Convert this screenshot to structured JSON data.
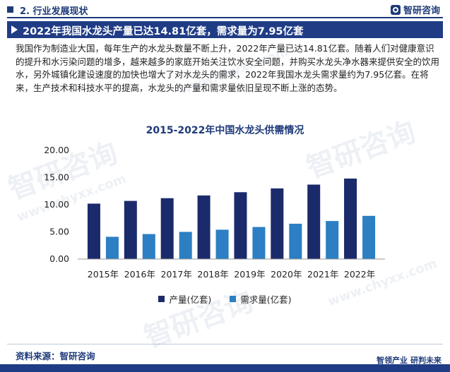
{
  "header": {
    "section": "2. 行业发展现状",
    "brand": "智研咨询"
  },
  "banner": {
    "title": "2022年我国水龙头产量已达14.81亿套，需求量为7.95亿套"
  },
  "paragraph": "我国作为制造业大国，每年生产的水龙头数量不断上升，2022年产量已达14.81亿套。随着人们对健康意识的提升和水污染问题的增多，越来越多的家庭开始关注饮水安全问题，并购买水龙头净水器来提供安全的饮用水，另外城镇化建设速度的加快也增大了对水龙头的需求，2022年我国水龙头需求量约为7.95亿套。在将来，生产技术和科技水平的提高，水龙头的产量和需求量依旧呈现不断上涨的态势。",
  "watermark": {
    "cn": "智研咨询",
    "url": "www.chyxx.com"
  },
  "chart_data": {
    "type": "bar",
    "title": "2015-2022年中国水龙头供需情况",
    "categories": [
      "2015年",
      "2016年",
      "2017年",
      "2018年",
      "2019年",
      "2020年",
      "2021年",
      "2022年"
    ],
    "series": [
      {
        "name": "产量(亿套)",
        "color": "#1b2a6b",
        "values": [
          10.2,
          10.7,
          11.2,
          11.7,
          12.3,
          13.0,
          13.7,
          14.81
        ]
      },
      {
        "name": "需求量(亿套)",
        "color": "#2b7fc2",
        "values": [
          4.1,
          4.6,
          5.0,
          5.4,
          5.9,
          6.5,
          7.0,
          7.95
        ]
      }
    ],
    "yticks": [
      "0.00",
      "5.00",
      "10.00",
      "15.00",
      "20.00"
    ],
    "ylim": [
      0,
      20
    ],
    "grid": false,
    "legend": "bottom"
  },
  "footer": {
    "source": "资料来源：智研咨询",
    "brand_left": "智领产业",
    "brand_right": "研判未来"
  }
}
